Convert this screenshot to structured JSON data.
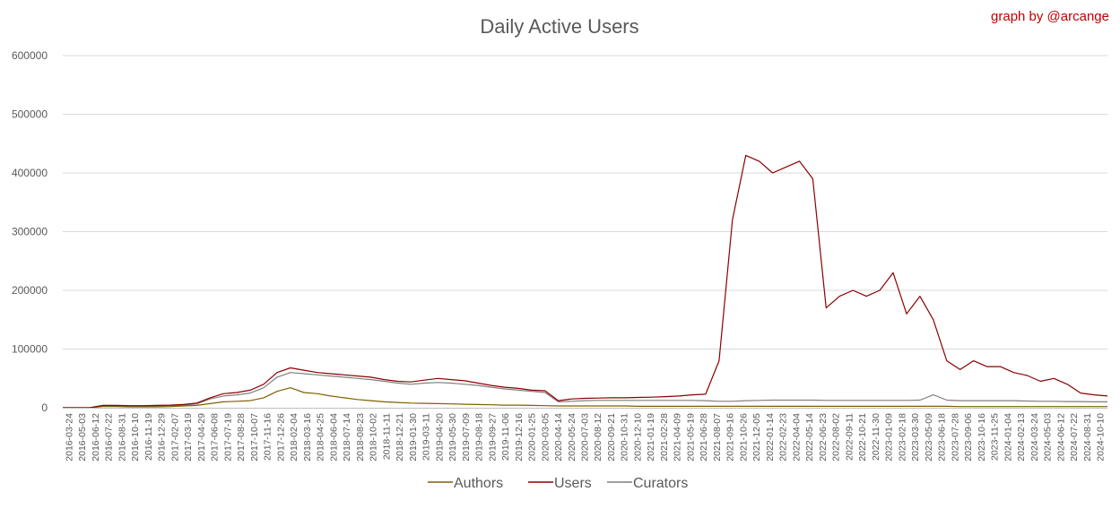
{
  "chart_data": {
    "type": "line",
    "title": "Daily Active Users",
    "credit": "graph by @arcange",
    "xlabel": "",
    "ylabel": "",
    "ylim": [
      0,
      600000
    ],
    "yticks": [
      "0",
      "100000",
      "200000",
      "300000",
      "400000",
      "500000",
      "600000"
    ],
    "grid": true,
    "legend": "bottom",
    "x": [
      "2016-03-24",
      "2016-05-03",
      "2016-06-12",
      "2016-07-22",
      "2016-08-31",
      "2016-10-10",
      "2016-11-19",
      "2016-12-29",
      "2017-02-07",
      "2017-03-19",
      "2017-04-28",
      "2017-06-07",
      "2017-07-17",
      "2017-08-26",
      "2017-10-05",
      "2017-11-14",
      "2017-12-24",
      "2018-02-02",
      "2018-03-14",
      "2018-04-23",
      "2018-06-02",
      "2018-07-12",
      "2018-08-21",
      "2018-09-30",
      "2018-11-09",
      "2018-12-19",
      "2019-01-28",
      "2019-03-09",
      "2019-04-18",
      "2019-05-28",
      "2019-07-07",
      "2019-08-16",
      "2019-09-25",
      "2019-11-04",
      "2019-12-14",
      "2020-01-23",
      "2020-03-03",
      "2020-04-12",
      "2020-05-22",
      "2020-07-01",
      "2020-08-10",
      "2020-09-19",
      "2020-10-29",
      "2020-12-08",
      "2021-01-17",
      "2021-02-26",
      "2021-04-07",
      "2021-05-17",
      "2021-06-26",
      "2021-08-05",
      "2021-09-14",
      "2021-10-24",
      "2021-12-03",
      "2022-01-12",
      "2022-02-21",
      "2022-04-02",
      "2022-05-12",
      "2022-06-21",
      "2022-07-31",
      "2022-09-09",
      "2022-10-19",
      "2022-11-28",
      "2023-01-07",
      "2023-02-16",
      "2023-03-28",
      "2023-05-07",
      "2023-06-16",
      "2023-07-26",
      "2023-09-04",
      "2023-10-14",
      "2023-11-23",
      "2024-01-02",
      "2024-02-11",
      "2024-03-22",
      "2024-05-01",
      "2024-06-10",
      "2024-07-20",
      "2024-08-29",
      "2024-10-08"
    ],
    "xticks": [
      "2016-03-24",
      "2016-05-03",
      "2016-06-12",
      "2016-07-22",
      "2016-08-31",
      "2016-10-10",
      "2016-11-19",
      "2016-12-29",
      "2017-02-07",
      "2017-03-19",
      "2017-04-29",
      "2017-06-08",
      "2017-07-19",
      "2017-08-28",
      "2017-10-07",
      "2017-11-16",
      "2017-12-26",
      "2018-02-04",
      "2018-03-16",
      "2018-04-25",
      "2018-06-04",
      "2018-07-14",
      "2018-08-23",
      "2018-10-02",
      "2018-11-11",
      "2018-12-21",
      "2019-01-30",
      "2019-03-11",
      "2019-04-20",
      "2019-05-30",
      "2019-07-09",
      "2019-08-18",
      "2019-09-27",
      "2019-11-06",
      "2019-12-16",
      "2020-01-25",
      "2020-03-05",
      "2020-04-14",
      "2020-05-24",
      "2020-07-03",
      "2020-08-12",
      "2020-09-21",
      "2020-10-31",
      "2020-12-10",
      "2021-01-19",
      "2021-02-28",
      "2021-04-09",
      "2021-05-19",
      "2021-06-28",
      "2021-08-07",
      "2021-09-16",
      "2021-10-26",
      "2021-12-05",
      "2022-01-14",
      "2022-02-23",
      "2022-04-04",
      "2022-05-14",
      "2022-06-23",
      "2022-08-02",
      "2022-09-11",
      "2022-10-21",
      "2022-11-30",
      "2023-01-09",
      "2023-02-18",
      "2023-03-30",
      "2023-05-09",
      "2023-06-18",
      "2023-07-28",
      "2023-09-06",
      "2023-10-16",
      "2023-11-25",
      "2024-01-04",
      "2024-02-13",
      "2024-03-24",
      "2024-05-03",
      "2024-06-12",
      "2024-07-22",
      "2024-08-31",
      "2024-10-10"
    ],
    "series": [
      {
        "name": "Authors",
        "color": "#7f6000",
        "values": [
          0,
          0,
          0,
          2000,
          2000,
          1500,
          1500,
          1500,
          2000,
          3000,
          4000,
          7000,
          10000,
          11000,
          12000,
          17000,
          28000,
          34000,
          26000,
          24000,
          20000,
          17000,
          14000,
          12000,
          10000,
          9000,
          8000,
          7500,
          7000,
          6500,
          6000,
          5500,
          5000,
          4500,
          4500,
          4000,
          3500,
          3000,
          3000,
          3000,
          3000,
          3000,
          3000,
          2500,
          2500,
          2500,
          2500,
          2500,
          2500,
          2500,
          2500,
          2500,
          2500,
          2500,
          2500,
          2500,
          2500,
          2500,
          2500,
          2500,
          2500,
          2500,
          2500,
          2500,
          2500,
          2500,
          2500,
          2000,
          2000,
          2000,
          2000,
          2000,
          2000,
          2000,
          2000,
          2000,
          2000,
          2000,
          2000
        ]
      },
      {
        "name": "Users",
        "color": "#8b0000",
        "values": [
          0,
          0,
          0,
          4000,
          4000,
          3500,
          3500,
          4000,
          4500,
          5500,
          8000,
          17000,
          24000,
          26000,
          30000,
          40000,
          60000,
          68000,
          64000,
          60000,
          58000,
          56000,
          54000,
          52000,
          48000,
          45000,
          44000,
          47000,
          50000,
          48000,
          46000,
          42000,
          38000,
          35000,
          33000,
          30000,
          29000,
          12000,
          15000,
          16000,
          16500,
          17000,
          17000,
          17500,
          18000,
          19000,
          20000,
          22000,
          23000,
          80000,
          320000,
          430000,
          420000,
          400000,
          410000,
          420000,
          390000,
          170000,
          190000,
          200000,
          190000,
          200000,
          230000,
          160000,
          190000,
          150000,
          80000,
          65000,
          80000,
          70000,
          70000,
          60000,
          55000,
          45000,
          50000,
          40000,
          25000,
          22000,
          20000
        ]
      },
      {
        "name": "Curators",
        "color": "#7f7f7f",
        "values": [
          0,
          0,
          0,
          3000,
          3000,
          3000,
          3000,
          3000,
          3500,
          4500,
          6500,
          15000,
          20000,
          22000,
          25000,
          34000,
          52000,
          60000,
          58000,
          56000,
          54000,
          52000,
          50000,
          48000,
          45000,
          42000,
          40000,
          42000,
          43000,
          42000,
          40000,
          38000,
          35000,
          32000,
          30000,
          28000,
          26000,
          10000,
          11000,
          12000,
          12500,
          12500,
          12500,
          12500,
          12500,
          12500,
          12500,
          12500,
          12000,
          11000,
          11000,
          12000,
          12500,
          13000,
          13000,
          13000,
          13000,
          12500,
          12500,
          12500,
          12500,
          12500,
          12500,
          12500,
          13000,
          22000,
          13000,
          12000,
          12000,
          12000,
          12000,
          12000,
          11500,
          11000,
          11000,
          10500,
          10500,
          10000,
          10000
        ]
      }
    ]
  }
}
